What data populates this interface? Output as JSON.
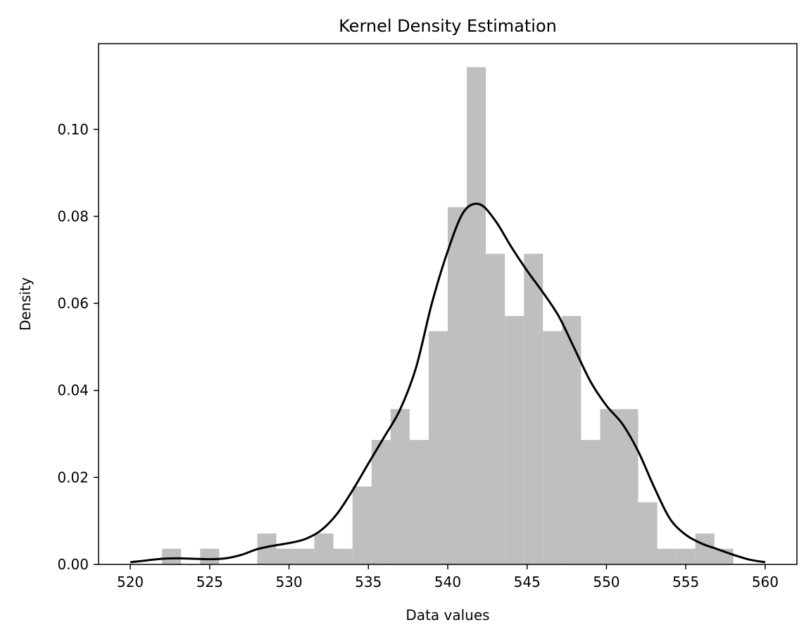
{
  "chart_data": {
    "type": "bar",
    "title": "Kernel Density Estimation",
    "xlabel": "Data values",
    "ylabel": "Density",
    "xlim": [
      518,
      562
    ],
    "ylim": [
      0,
      0.1197
    ],
    "xticks": [
      520,
      525,
      530,
      535,
      540,
      545,
      550,
      555,
      560
    ],
    "yticks": [
      0.0,
      0.02,
      0.04,
      0.06,
      0.08,
      0.1
    ],
    "ytick_labels": [
      "0.00",
      "0.02",
      "0.04",
      "0.06",
      "0.08",
      "0.10"
    ],
    "grid": false,
    "colors": {
      "bars": "#bfbfbf",
      "kde": "#000000"
    },
    "histogram": {
      "bin_width": 1.2,
      "bins": [
        {
          "x0": 522.0,
          "x1": 523.2,
          "value": 0.0036
        },
        {
          "x0": 523.2,
          "x1": 524.4,
          "value": 0.0
        },
        {
          "x0": 524.4,
          "x1": 525.6,
          "value": 0.0036
        },
        {
          "x0": 525.6,
          "x1": 526.8,
          "value": 0.0
        },
        {
          "x0": 526.8,
          "x1": 528.0,
          "value": 0.0
        },
        {
          "x0": 528.0,
          "x1": 529.2,
          "value": 0.0071
        },
        {
          "x0": 529.2,
          "x1": 530.4,
          "value": 0.0036
        },
        {
          "x0": 530.4,
          "x1": 531.6,
          "value": 0.0036
        },
        {
          "x0": 531.6,
          "x1": 532.8,
          "value": 0.0071
        },
        {
          "x0": 532.8,
          "x1": 534.0,
          "value": 0.0036
        },
        {
          "x0": 534.0,
          "x1": 535.2,
          "value": 0.0179
        },
        {
          "x0": 535.2,
          "x1": 536.4,
          "value": 0.0286
        },
        {
          "x0": 536.4,
          "x1": 537.6,
          "value": 0.0357
        },
        {
          "x0": 537.6,
          "x1": 538.8,
          "value": 0.0286
        },
        {
          "x0": 538.8,
          "x1": 540.0,
          "value": 0.0536
        },
        {
          "x0": 540.0,
          "x1": 541.2,
          "value": 0.0821
        },
        {
          "x0": 541.2,
          "x1": 542.4,
          "value": 0.1143
        },
        {
          "x0": 542.4,
          "x1": 543.6,
          "value": 0.0714
        },
        {
          "x0": 543.6,
          "x1": 544.8,
          "value": 0.0571
        },
        {
          "x0": 544.8,
          "x1": 546.0,
          "value": 0.0714
        },
        {
          "x0": 546.0,
          "x1": 547.2,
          "value": 0.0536
        },
        {
          "x0": 547.2,
          "x1": 548.4,
          "value": 0.0571
        },
        {
          "x0": 548.4,
          "x1": 549.6,
          "value": 0.0286
        },
        {
          "x0": 549.6,
          "x1": 550.8,
          "value": 0.0357
        },
        {
          "x0": 550.8,
          "x1": 552.0,
          "value": 0.0357
        },
        {
          "x0": 552.0,
          "x1": 553.2,
          "value": 0.0143
        },
        {
          "x0": 553.2,
          "x1": 554.4,
          "value": 0.0036
        },
        {
          "x0": 554.4,
          "x1": 555.6,
          "value": 0.0036
        },
        {
          "x0": 555.6,
          "x1": 556.8,
          "value": 0.0071
        },
        {
          "x0": 556.8,
          "x1": 558.0,
          "value": 0.0036
        }
      ]
    },
    "kde": {
      "x": [
        520,
        521,
        522,
        523,
        524,
        525,
        526,
        527,
        528,
        529,
        530,
        531,
        532,
        533,
        534,
        535,
        536,
        537,
        538,
        539,
        540,
        541,
        542,
        543,
        544,
        545,
        546,
        547,
        548,
        549,
        550,
        551,
        552,
        553,
        554,
        555,
        556,
        557,
        558,
        559,
        560
      ],
      "y": [
        0.0005,
        0.0009,
        0.0013,
        0.0014,
        0.0013,
        0.0012,
        0.0014,
        0.0022,
        0.0035,
        0.0043,
        0.0049,
        0.0058,
        0.0078,
        0.0115,
        0.017,
        0.0232,
        0.0293,
        0.0356,
        0.0452,
        0.06,
        0.072,
        0.081,
        0.0828,
        0.079,
        0.073,
        0.0675,
        0.0625,
        0.057,
        0.0495,
        0.042,
        0.0365,
        0.0323,
        0.026,
        0.0178,
        0.0105,
        0.0068,
        0.0048,
        0.0035,
        0.0022,
        0.0011,
        0.0005
      ]
    }
  }
}
